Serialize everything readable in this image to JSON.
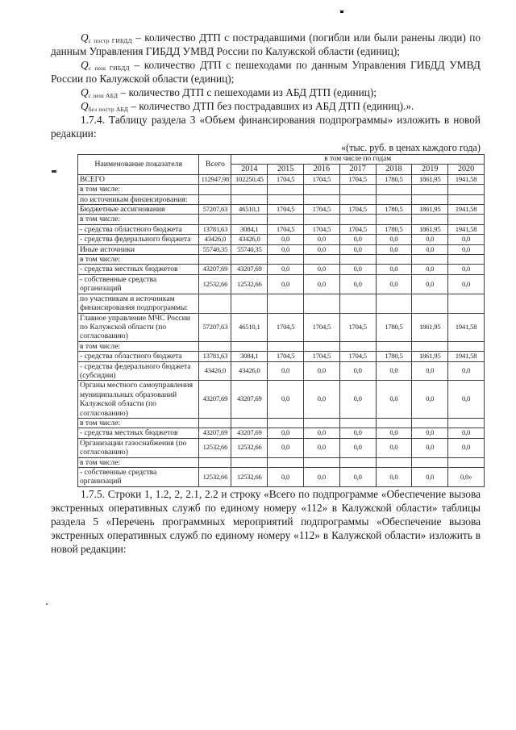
{
  "colors": {
    "ink": "#1b1b1b",
    "paper": "#ffffff",
    "table_border": "#3e3e3e"
  },
  "artifacts": {
    "top_dot": "",
    "left_dash": "",
    "bottom_dot": ""
  },
  "intro": [
    {
      "symbol": "Q",
      "sub": "с постр ГИБДД",
      "text": " – количество ДТП с пострадавшими (погибли или были ранены люди) по данным Управления ГИБДД УМВД России по Калужской области (единиц);"
    },
    {
      "symbol": "Q",
      "sub": "с пеш ГИБДД",
      "text": " – количество ДТП с пешеходами по данным Управления ГИБДД УМВД России по Калужской области (единиц);"
    },
    {
      "symbol": "Q",
      "sub": "с пеш АБД",
      "text": "  – количество ДТП с пешеходами из АБД ДТП (единиц);"
    },
    {
      "symbol": "Q",
      "sub": "без постр АБД",
      "text": " – количество ДТП без пострадавших из АБД ДТП (единиц).»."
    }
  ],
  "section_1_7_4": "1.7.4. Таблицу раздела 3 «Объем финансирования подпрограммы» изложить в новой редакции:",
  "table_caption": "«(тыс. руб. в ценах каждого года)",
  "table": {
    "header": {
      "name": "Наименование показателя",
      "total": "Всего",
      "years_group": "в том числе по годам",
      "years": [
        "2014",
        "2015",
        "2016",
        "2017",
        "2018",
        "2019",
        "2020"
      ]
    },
    "rows": [
      {
        "name": "ВСЕГО",
        "values": [
          "112947,98",
          "102250,45",
          "1704,5",
          "1704,5",
          "1704,5",
          "1780,5",
          "1861,95",
          "1941,58"
        ]
      },
      {
        "name": "в том числе:",
        "values": [
          "",
          "",
          "",
          "",
          "",
          "",
          "",
          ""
        ]
      },
      {
        "name": "по источникам финансирования:",
        "values": [
          "",
          "",
          "",
          "",
          "",
          "",
          "",
          ""
        ]
      },
      {
        "name": "Бюджетные ассигнования",
        "values": [
          "57207,63",
          "46510,1",
          "1704,5",
          "1704,5",
          "1704,5",
          "1780,5",
          "1861,95",
          "1941,58"
        ]
      },
      {
        "name": "в том числе:",
        "values": [
          "",
          "",
          "",
          "",
          "",
          "",
          "",
          ""
        ]
      },
      {
        "name": "- средства областного бюджета",
        "values": [
          "13781,63",
          "3084,1",
          "1704,5",
          "1704,5",
          "1704,5",
          "1780,5",
          "1861,95",
          "1941,58"
        ]
      },
      {
        "name": "- средства федерального бюджета",
        "values": [
          "43426,0",
          "43426,0",
          "0,0",
          "0,0",
          "0,0",
          "0,0",
          "0,0",
          "0,0"
        ]
      },
      {
        "name": "Иные источники",
        "values": [
          "55740,35",
          "55740,35",
          "0,0",
          "0,0",
          "0,0",
          "0,0",
          "0,0",
          "0,0"
        ]
      },
      {
        "name": "в том числе:",
        "values": [
          "",
          "",
          "",
          "",
          "",
          "",
          "",
          ""
        ]
      },
      {
        "name": "- средства местных бюджетов",
        "values": [
          "43207,69",
          "43207,69",
          "0,0",
          "0,0",
          "0,0",
          "0,0",
          "0,0",
          "0,0"
        ]
      },
      {
        "name": "- собственные средства организаций",
        "values": [
          "12532,66",
          "12532,66",
          "0,0",
          "0,0",
          "0,0",
          "0,0",
          "0,0",
          "0,0"
        ]
      },
      {
        "name": "по участникам и источникам финансирования подпрограммы:",
        "values": [
          "",
          "",
          "",
          "",
          "",
          "",
          "",
          ""
        ]
      },
      {
        "name": "Главное управление МЧС России по Калужской области (по согласованию)",
        "values": [
          "57207,63",
          "46510,1",
          "1704,5",
          "1704,5",
          "1704,5",
          "1780,5",
          "1861,95",
          "1941,58"
        ]
      },
      {
        "name": "в том числе:",
        "values": [
          "",
          "",
          "",
          "",
          "",
          "",
          "",
          ""
        ]
      },
      {
        "name": "- средства областного бюджета",
        "values": [
          "13781,63",
          "3084,1",
          "1704,5",
          "1704,5",
          "1704,5",
          "1780,5",
          "1861,95",
          "1941,58"
        ]
      },
      {
        "name": "- средства федерального бюджета (субсидии)",
        "values": [
          "43426,0",
          "43426,0",
          "0,0",
          "0,0",
          "0,0",
          "0,0",
          "0,0",
          "0,0"
        ]
      },
      {
        "name": "Органы местного самоуправления муниципальных образований Калужской области (по согласованию)",
        "values": [
          "43207,69",
          "43207,69",
          "0,0",
          "0,0",
          "0,0",
          "0,0",
          "0,0",
          "0,0"
        ]
      },
      {
        "name": "в том числе:",
        "values": [
          "",
          "",
          "",
          "",
          "",
          "",
          "",
          ""
        ]
      },
      {
        "name": "- средства местных бюджетов",
        "values": [
          "43207,69",
          "43207,69",
          "0,0",
          "0,0",
          "0,0",
          "0,0",
          "0,0",
          "0,0"
        ]
      },
      {
        "name": "Организации газоснабжения (по согласованию)",
        "values": [
          "12532,66",
          "12532,66",
          "0,0",
          "0,0",
          "0,0",
          "0,0",
          "0,0",
          "0,0"
        ]
      },
      {
        "name": "в том числе:",
        "values": [
          "",
          "",
          "",
          "",
          "",
          "",
          "",
          ""
        ]
      },
      {
        "name": "- собственные средства организаций",
        "values": [
          "12532,66",
          "12532,66",
          "0,0",
          "0,0",
          "0,0",
          "0,0",
          "0,0",
          "0,0»"
        ]
      }
    ]
  },
  "section_1_7_5": "1.7.5. Строки 1, 1.2, 2, 2.1, 2.2 и строку «Всего по подпрограмме «Обеспечение вызова экстренных оперативных служб по единому номеру «112» в Калужской области» таблицы раздела 5 «Перечень программных мероприятий подпрограммы «Обеспечение вызова экстренных оперативных служб по единому номеру «112» в Калужской области» изложить в новой редакции:"
}
